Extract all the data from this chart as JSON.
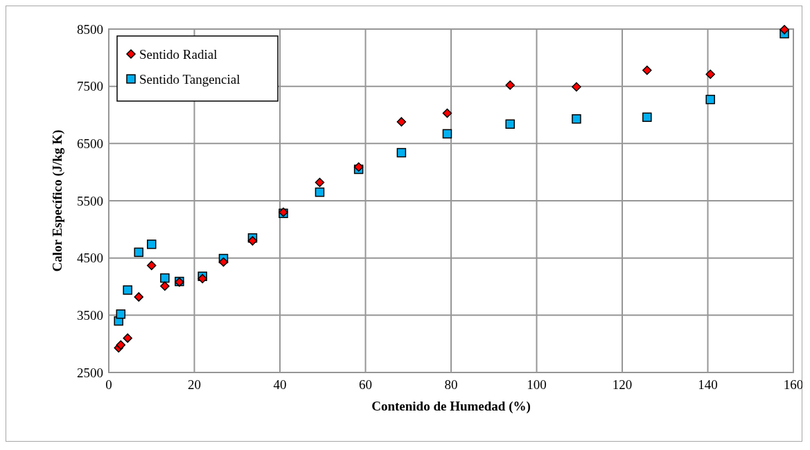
{
  "chart_data": {
    "type": "scatter",
    "xlabel": "Contenido de Humedad (%)",
    "ylabel": "Calor Específico (J/kg K)",
    "xlim": [
      0,
      160
    ],
    "xticks": [
      0,
      20,
      40,
      60,
      80,
      100,
      120,
      140,
      160
    ],
    "ylim": [
      2500,
      8500
    ],
    "yticks": [
      2500,
      3500,
      4500,
      5500,
      6500,
      7500,
      8500
    ],
    "grid": true,
    "legend": "top left",
    "x": [
      2.3,
      2.8,
      4.4,
      7.0,
      10.0,
      13.1,
      16.5,
      21.9,
      26.8,
      33.6,
      40.8,
      49.3,
      58.4,
      68.4,
      79.1,
      93.8,
      109.3,
      125.8,
      140.6,
      157.9
    ],
    "series": [
      {
        "name": "Sentido Radial",
        "color": "#ff0000",
        "marker": "diamond",
        "values": [
          2930,
          2980,
          3100,
          3820,
          4370,
          4010,
          4080,
          4140,
          4430,
          4800,
          5300,
          5820,
          6090,
          6880,
          7030,
          7520,
          7490,
          7780,
          7710,
          8490
        ]
      },
      {
        "name": "Sentido Tangencial",
        "color": "#00b0f0",
        "marker": "square",
        "values": [
          3400,
          3520,
          3940,
          4600,
          4740,
          4150,
          4090,
          4180,
          4490,
          4850,
          5280,
          5650,
          6050,
          6340,
          6670,
          6840,
          6930,
          6960,
          7270,
          8420
        ]
      }
    ]
  }
}
